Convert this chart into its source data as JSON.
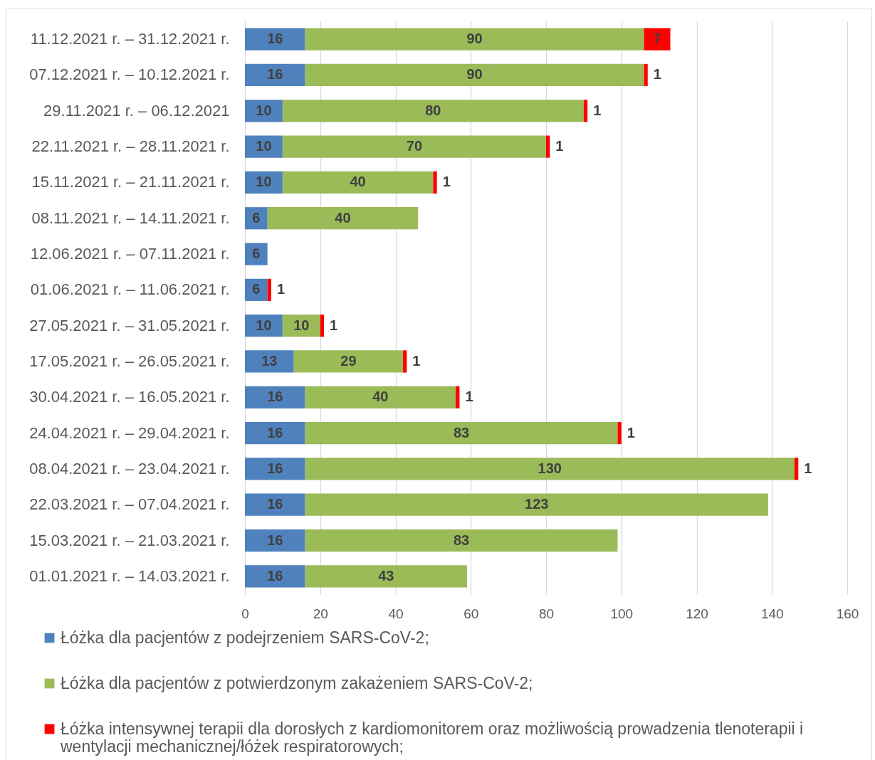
{
  "chart_data": {
    "type": "bar",
    "orientation": "horizontal",
    "stacked": true,
    "categories": [
      "11.12.2021 r. – 31.12.2021 r.",
      "07.12.2021 r. – 10.12.2021 r.",
      "29.11.2021 r. – 06.12.2021",
      "22.11.2021 r. – 28.11.2021 r.",
      "15.11.2021 r. – 21.11.2021 r.",
      "08.11.2021 r. – 14.11.2021 r.",
      "12.06.2021 r. – 07.11.2021 r.",
      "01.06.2021 r. – 11.06.2021 r.",
      "27.05.2021 r. – 31.05.2021 r.",
      "17.05.2021 r. – 26.05.2021 r.",
      "30.04.2021 r. – 16.05.2021 r.",
      "24.04.2021 r. – 29.04.2021 r.",
      "08.04.2021 r. – 23.04.2021 r.",
      "22.03.2021 r. – 07.04.2021 r.",
      "15.03.2021 r. – 21.03.2021 r.",
      "01.01.2021 r. – 14.03.2021 r."
    ],
    "series": [
      {
        "name": "Łóżka dla pacjentów z podejrzeniem SARS-CoV-2;",
        "color": "#4f81bd",
        "values": [
          16,
          16,
          10,
          10,
          10,
          6,
          6,
          6,
          10,
          13,
          16,
          16,
          16,
          16,
          16,
          16
        ]
      },
      {
        "name": "Łóżka dla pacjentów z potwierdzonym zakażeniem SARS-CoV-2;",
        "color": "#9bbb59",
        "values": [
          90,
          90,
          80,
          70,
          40,
          40,
          null,
          null,
          10,
          29,
          40,
          83,
          130,
          123,
          83,
          43
        ]
      },
      {
        "name": "Łóżka intensywnej terapii dla dorosłych z kardiomonitorem oraz możliwością prowadzenia tlenoterapii i wentylacji mechanicznej/łóżek respiratorowych;",
        "color": "#ff0000",
        "values": [
          7,
          1,
          1,
          1,
          1,
          null,
          null,
          1,
          1,
          1,
          1,
          1,
          1,
          null,
          null,
          null
        ]
      }
    ],
    "xlim": [
      0,
      160
    ],
    "xticks": [
      0,
      20,
      40,
      60,
      80,
      100,
      120,
      140,
      160
    ],
    "grid": "x",
    "legend": "bottom",
    "data_labels": true
  }
}
